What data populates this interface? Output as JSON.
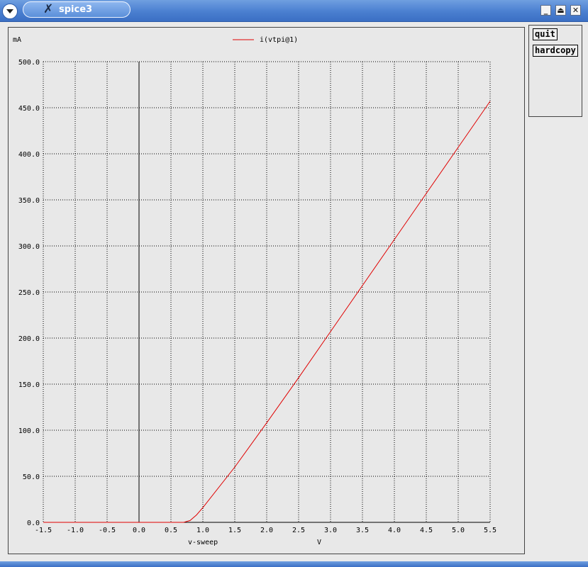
{
  "window": {
    "title": "spice3",
    "buttons": {
      "minimize": "_",
      "maximize": "⏏",
      "close": "✕"
    }
  },
  "side_panel": {
    "quit_label": "quit",
    "hardcopy_label": "hardcopy"
  },
  "chart_data": {
    "type": "line",
    "ylabel": "mA",
    "xlabel": "v-sweep",
    "x_unit": "V",
    "legend": "top-center",
    "grid": true,
    "xlim": [
      -1.5,
      5.5
    ],
    "ylim": [
      0,
      500
    ],
    "x_ticks": [
      -1.5,
      -1.0,
      -0.5,
      0.0,
      0.5,
      1.0,
      1.5,
      2.0,
      2.5,
      3.0,
      3.5,
      4.0,
      4.5,
      5.0,
      5.5
    ],
    "x_tick_labels": [
      "-1.5",
      "-1.0",
      "-0.5",
      "0.0",
      "0.5",
      "1.0",
      "1.5",
      "2.0",
      "2.5",
      "3.0",
      "3.5",
      "4.0",
      "4.5",
      "5.0",
      "5.5"
    ],
    "y_ticks": [
      0,
      50,
      100,
      150,
      200,
      250,
      300,
      350,
      400,
      450,
      500
    ],
    "y_tick_labels": [
      "0.0",
      "50.0",
      "100.0",
      "150.0",
      "200.0",
      "250.0",
      "300.0",
      "350.0",
      "400.0",
      "450.0",
      "500.0"
    ],
    "series": [
      {
        "name": "i(vtpi@1)",
        "color": "#e00000",
        "x": [
          -1.5,
          0.0,
          0.7,
          0.8,
          0.9,
          1.0,
          1.5,
          2.0,
          2.5,
          3.0,
          3.5,
          4.0,
          4.5,
          5.0,
          5.5
        ],
        "y": [
          0,
          0,
          0,
          2,
          8,
          16,
          60,
          108,
          157,
          207,
          257,
          307,
          357,
          407,
          457
        ]
      }
    ]
  },
  "colors": {
    "titlebar": "#4a7fd0",
    "background": "#e8e8e8",
    "grid": "#000000"
  }
}
